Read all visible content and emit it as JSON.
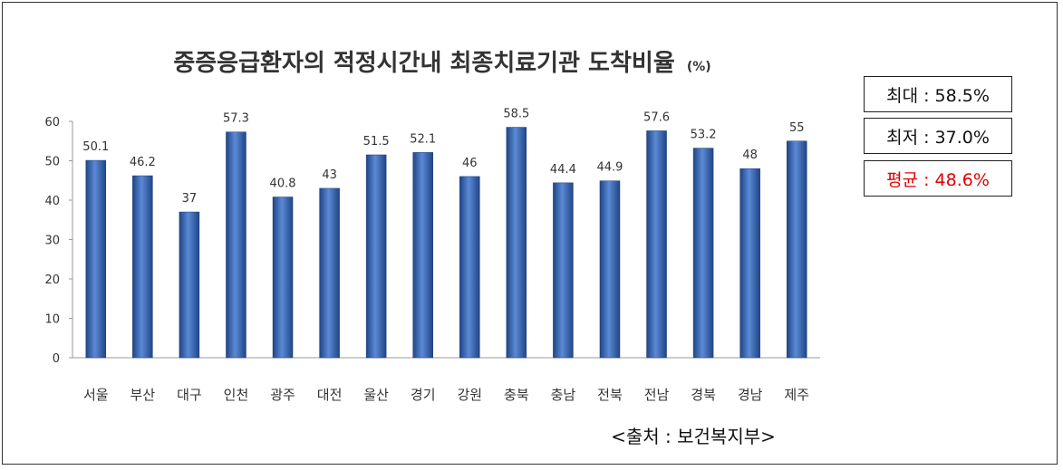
{
  "chart_data": {
    "type": "bar",
    "title": "중증응급환자의 적정시간내 최종치료기관 도착비율",
    "title_unit": "(%)",
    "xlabel": "",
    "ylabel": "",
    "ylim": [
      0,
      60
    ],
    "yticks": [
      "0",
      "10",
      "20",
      "30",
      "40",
      "50",
      "60"
    ],
    "grid": false,
    "categories": [
      "서울",
      "부산",
      "대구",
      "인천",
      "광주",
      "대전",
      "울산",
      "경기",
      "강원",
      "충북",
      "충남",
      "전북",
      "전남",
      "경북",
      "경남",
      "제주"
    ],
    "values": [
      50.1,
      46.2,
      37,
      57.3,
      40.8,
      43,
      51.5,
      52.1,
      46,
      58.5,
      44.4,
      44.9,
      57.6,
      53.2,
      48,
      55
    ],
    "value_labels": [
      "50.1",
      "46.2",
      "37",
      "57.3",
      "40.8",
      "43",
      "51.5",
      "52.1",
      "46",
      "58.5",
      "44.4",
      "44.9",
      "57.6",
      "53.2",
      "48",
      "55"
    ],
    "bar_color": "#2f5fa8"
  },
  "stats": {
    "max": "최대 : 58.5%",
    "min": "최저 : 37.0%",
    "avg": "평균 : 48.6%"
  },
  "source": "<출처 : 보건복지부>",
  "colors": {
    "bar": "#2f5fa8",
    "bar_highlight": "#6f9be0",
    "average_text": "#e00000"
  }
}
